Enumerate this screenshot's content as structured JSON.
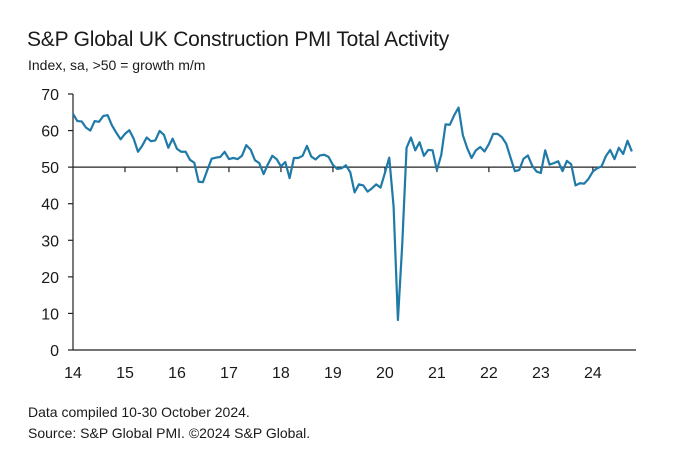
{
  "chart_data": {
    "type": "line",
    "title": "S&P Global UK Construction PMI Total Activity",
    "subtitle": "Index, sa, >50 = growth m/m",
    "xlabel": "",
    "ylabel": "",
    "ylim": [
      0,
      70
    ],
    "yticks": [
      0,
      10,
      20,
      30,
      40,
      50,
      60,
      70
    ],
    "xlim": [
      2014.0,
      2024.83
    ],
    "xticks": [
      {
        "value": 2014,
        "label": "14"
      },
      {
        "value": 2015,
        "label": "15"
      },
      {
        "value": 2016,
        "label": "16"
      },
      {
        "value": 2017,
        "label": "17"
      },
      {
        "value": 2018,
        "label": "18"
      },
      {
        "value": 2019,
        "label": "19"
      },
      {
        "value": 2020,
        "label": "20"
      },
      {
        "value": 2021,
        "label": "21"
      },
      {
        "value": 2022,
        "label": "22"
      },
      {
        "value": 2023,
        "label": "23"
      },
      {
        "value": 2024,
        "label": "24"
      }
    ],
    "reference_line": 50,
    "line_color": "#1f7aa8",
    "axis_color": "#222222",
    "series": [
      {
        "name": "Total Activity",
        "start": "2014-01",
        "values": [
          64.6,
          62.6,
          62.5,
          60.8,
          60.0,
          62.6,
          62.4,
          64.0,
          64.2,
          61.4,
          59.4,
          57.6,
          59.1,
          60.1,
          57.8,
          54.2,
          55.9,
          58.1,
          57.1,
          57.3,
          59.9,
          58.8,
          55.3,
          57.8,
          55.0,
          54.2,
          54.2,
          52.0,
          51.2,
          46.0,
          45.9,
          49.2,
          52.3,
          52.6,
          52.8,
          54.2,
          52.2,
          52.5,
          52.2,
          53.1,
          56.0,
          54.8,
          51.9,
          51.1,
          48.1,
          50.8,
          53.1,
          52.2,
          50.2,
          51.4,
          47.0,
          52.5,
          52.5,
          53.1,
          55.8,
          52.9,
          52.1,
          53.2,
          53.4,
          52.8,
          50.6,
          49.5,
          49.7,
          50.5,
          48.6,
          43.1,
          45.3,
          45.0,
          43.3,
          44.2,
          45.3,
          44.4,
          48.4,
          52.6,
          39.3,
          8.2,
          28.9,
          55.3,
          58.1,
          54.6,
          56.8,
          53.1,
          54.7,
          54.6,
          49.2,
          53.3,
          61.7,
          61.6,
          64.2,
          66.3,
          58.7,
          55.2,
          52.5,
          54.6,
          55.5,
          54.3,
          56.3,
          59.1,
          59.1,
          58.2,
          56.4,
          52.6,
          48.9,
          49.2,
          52.3,
          53.2,
          50.4,
          48.8,
          48.4,
          54.6,
          50.7,
          51.1,
          51.6,
          48.9,
          51.7,
          50.8,
          45.0,
          45.6,
          45.5,
          46.8,
          48.8,
          49.7,
          50.2,
          53.0,
          54.7,
          52.2,
          55.3,
          53.6,
          57.2,
          54.3
        ]
      }
    ]
  },
  "notes": {
    "compiled": "Data compiled 10-30 October 2024.",
    "source": "Source: S&P Global PMI. ©2024 S&P Global."
  }
}
